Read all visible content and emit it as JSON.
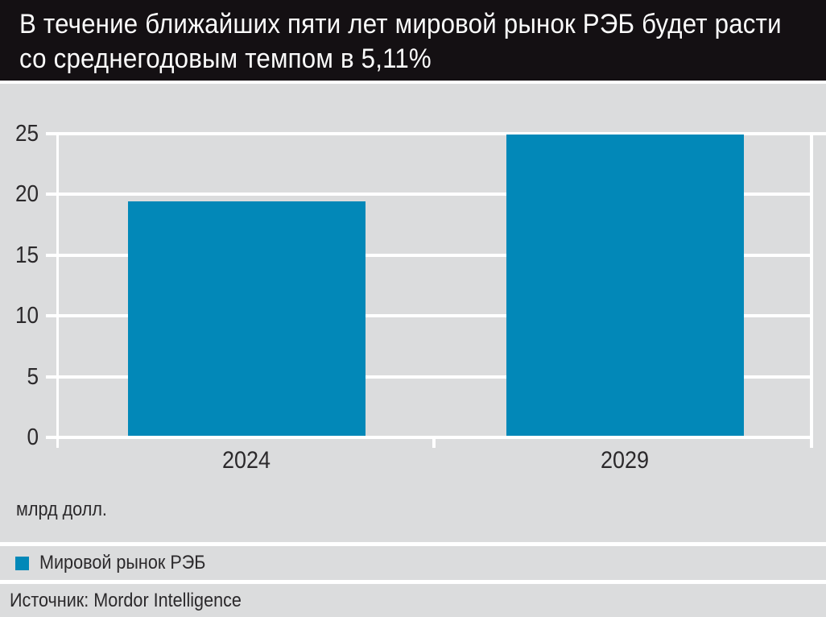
{
  "header": {
    "title_line1": "В течение ближайших пяти лет мировой рынок РЭБ будет расти",
    "title_line2": "со среднегодовым темпом в 5,11%",
    "bg_color": "#141013",
    "text_color": "#fbfbfb"
  },
  "chart_data": {
    "type": "bar",
    "title": "В течение ближайших пяти лет мировой рынок РЭБ будет расти со среднегодовым темпом в 5,11%",
    "categories": [
      "2024",
      "2029"
    ],
    "series": [
      {
        "name": "Мировой рынок РЭБ",
        "values": [
          19.44,
          24.94
        ]
      }
    ],
    "unit_label": "млрд долл.",
    "ylim": [
      0,
      25
    ],
    "yticks": [
      0,
      5,
      10,
      15,
      20,
      25
    ],
    "grid": "horizontal white gridlines on",
    "legend_position": "bottom-left",
    "bar_color": "#0288b8",
    "panel_color": "#dbdcdd",
    "tick_text_color": "#2b292b"
  },
  "legend": {
    "marker_color": "#0288b8",
    "label": "Мировой рынок РЭБ"
  },
  "source": {
    "text": "Источник: Mordor Intelligence"
  }
}
